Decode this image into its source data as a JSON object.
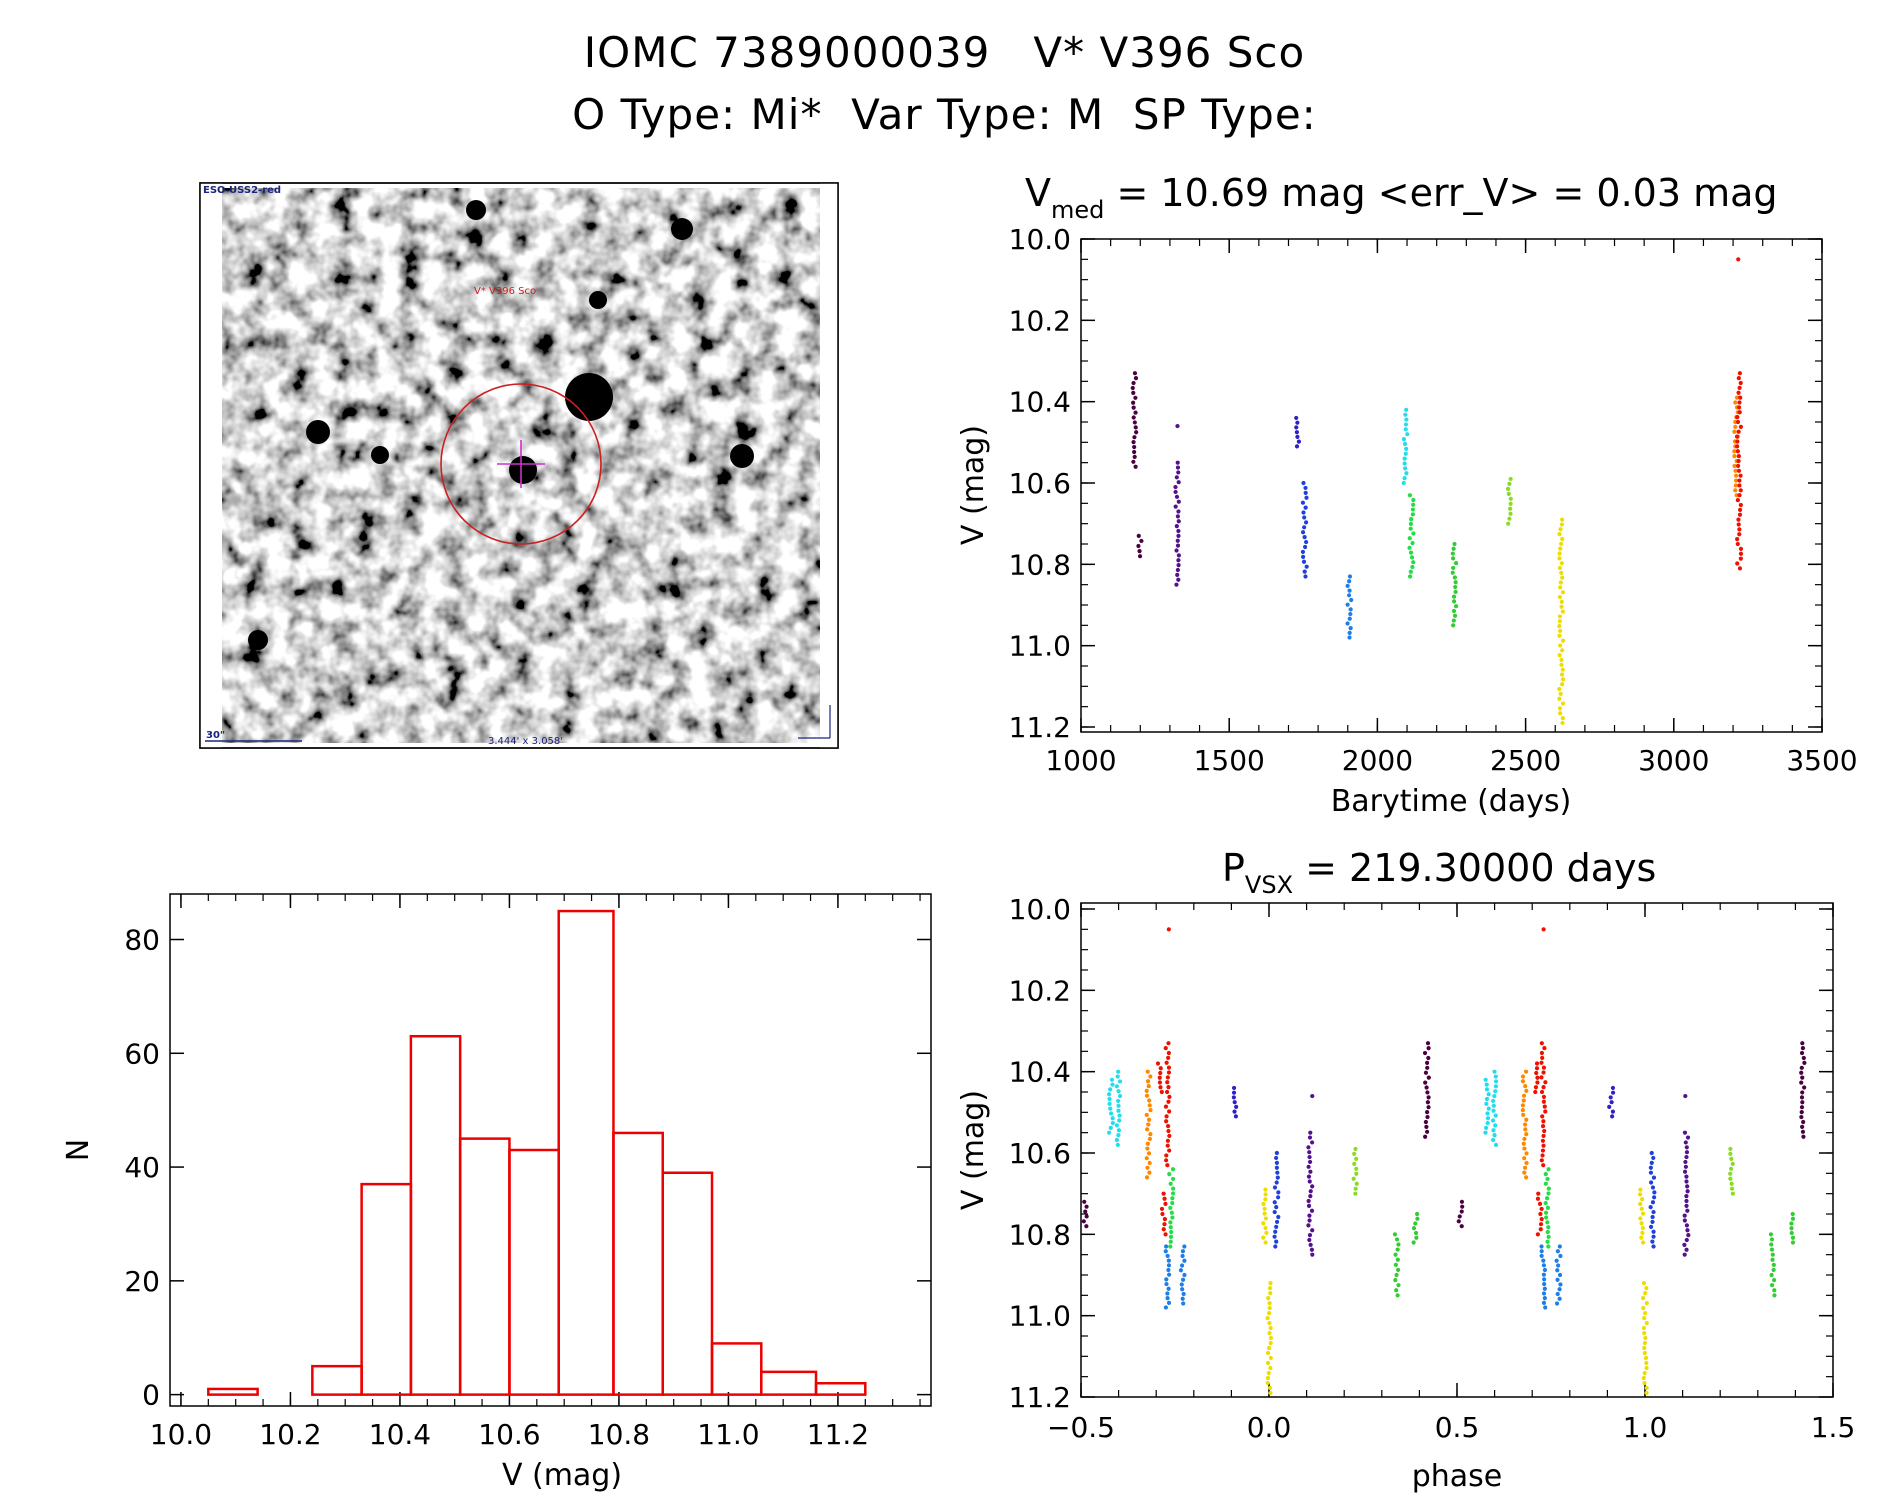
{
  "header": {
    "line1": "IOMC 7389000039   V* V396 Sco",
    "line2": "O Type: Mi*  Var Type: M  SP Type:"
  },
  "image_panel": {
    "survey_label": "ESO USS2-red",
    "object_label": "V* V396 Sco",
    "scale_label": "30\"",
    "size_label": "3.444' x 3.058'"
  },
  "chart_data": [
    {
      "type": "scatter",
      "name": "light-curve",
      "title_main": "V",
      "title_sub": "med",
      "title_rest": " = 10.69 mag <err_V> = 0.03 mag",
      "xlabel": "Barytime (days)",
      "ylabel": "V (mag)",
      "xlim": [
        1000,
        3500
      ],
      "ylim": [
        10.0,
        11.2
      ],
      "y_inverted": true,
      "xticks": [
        "1000",
        "1500",
        "2000",
        "2500",
        "3000",
        "3500"
      ],
      "yticks": [
        "10.0",
        "10.2",
        "10.4",
        "10.6",
        "10.8",
        "11.0",
        "11.2"
      ],
      "point_groups": [
        {
          "x": 1180,
          "ymin": 10.33,
          "ymax": 10.56,
          "color": "#4b0040"
        },
        {
          "x": 1200,
          "ymin": 10.73,
          "ymax": 10.78,
          "color": "#4b0040"
        },
        {
          "x": 1325,
          "ymin": 10.46,
          "ymax": 10.46,
          "color": "#55108c"
        },
        {
          "x": 1325,
          "ymin": 10.55,
          "ymax": 10.85,
          "color": "#55108c"
        },
        {
          "x": 1730,
          "ymin": 10.44,
          "ymax": 10.51,
          "color": "#3020c8"
        },
        {
          "x": 1755,
          "ymin": 10.6,
          "ymax": 10.83,
          "color": "#2040dd"
        },
        {
          "x": 1905,
          "ymin": 10.83,
          "ymax": 10.98,
          "color": "#1e7ee6"
        },
        {
          "x": 2095,
          "ymin": 10.42,
          "ymax": 10.6,
          "color": "#22ddee"
        },
        {
          "x": 2115,
          "ymin": 10.63,
          "ymax": 10.83,
          "color": "#22dd44"
        },
        {
          "x": 2260,
          "ymin": 10.75,
          "ymax": 10.95,
          "color": "#33cc33"
        },
        {
          "x": 2445,
          "ymin": 10.59,
          "ymax": 10.7,
          "color": "#88dd22"
        },
        {
          "x": 2620,
          "ymin": 10.69,
          "ymax": 11.19,
          "color": "#eedd00"
        },
        {
          "x": 3210,
          "ymin": 10.39,
          "ymax": 10.63,
          "color": "#ff8800"
        },
        {
          "x": 3220,
          "ymin": 10.33,
          "ymax": 10.81,
          "color": "#ee1100"
        },
        {
          "x": 3220,
          "ymin": 10.05,
          "ymax": 10.05,
          "color": "#ee1100"
        }
      ]
    },
    {
      "type": "bar",
      "name": "histogram",
      "xlabel": "V (mag)",
      "ylabel": "N",
      "xlim": [
        9.98,
        11.37
      ],
      "ylim": [
        -2,
        88
      ],
      "xticks": [
        "10.0",
        "10.2",
        "10.4",
        "10.6",
        "10.8",
        "11.0",
        "11.2"
      ],
      "yticks": [
        "0",
        "20",
        "40",
        "60",
        "80"
      ],
      "bin_edges": [
        10.05,
        10.14,
        10.24,
        10.33,
        10.42,
        10.51,
        10.6,
        10.69,
        10.79,
        10.88,
        10.97,
        11.06,
        11.16,
        11.25
      ],
      "values": [
        1,
        0,
        5,
        37,
        63,
        45,
        43,
        85,
        46,
        39,
        9,
        4,
        2
      ],
      "bar_color": "#ee0000"
    },
    {
      "type": "scatter",
      "name": "phase-curve",
      "title_main": "P",
      "title_sub": "VSX",
      "title_rest": " = 219.30000 days",
      "xlabel": "phase",
      "ylabel": "V (mag)",
      "xlim": [
        -0.5,
        1.5
      ],
      "ylim": [
        10.0,
        11.2
      ],
      "y_inverted": true,
      "xticks": [
        "−0.5",
        "0.0",
        "0.5",
        "1.0",
        "1.5"
      ],
      "yticks": [
        "10.0",
        "10.2",
        "10.4",
        "10.6",
        "10.8",
        "11.0",
        "11.2"
      ],
      "point_groups": [
        {
          "x": -0.49,
          "ymin": 10.72,
          "ymax": 10.78,
          "color": "#4b0040"
        },
        {
          "x": -0.42,
          "ymin": 10.42,
          "ymax": 10.55,
          "color": "#22ddee"
        },
        {
          "x": -0.4,
          "ymin": 10.4,
          "ymax": 10.58,
          "color": "#22ddee"
        },
        {
          "x": -0.32,
          "ymin": 10.4,
          "ymax": 10.66,
          "color": "#ff8800"
        },
        {
          "x": -0.29,
          "ymin": 10.38,
          "ymax": 10.45,
          "color": "#ee1100"
        },
        {
          "x": -0.28,
          "ymin": 10.7,
          "ymax": 10.8,
          "color": "#ee1100"
        },
        {
          "x": -0.27,
          "ymin": 10.33,
          "ymax": 10.63,
          "color": "#ee1100"
        },
        {
          "x": -0.27,
          "ymin": 10.05,
          "ymax": 10.05,
          "color": "#ee1100"
        },
        {
          "x": -0.26,
          "ymin": 10.64,
          "ymax": 10.83,
          "color": "#22dd44"
        },
        {
          "x": -0.27,
          "ymin": 10.83,
          "ymax": 10.98,
          "color": "#1e7ee6"
        },
        {
          "x": -0.23,
          "ymin": 10.83,
          "ymax": 10.97,
          "color": "#1e7ee6"
        },
        {
          "x": -0.09,
          "ymin": 10.44,
          "ymax": 10.51,
          "color": "#3020c8"
        },
        {
          "x": -0.01,
          "ymin": 10.69,
          "ymax": 10.82,
          "color": "#eedd00"
        },
        {
          "x": 0.0,
          "ymin": 10.92,
          "ymax": 11.19,
          "color": "#eedd00"
        },
        {
          "x": 0.02,
          "ymin": 10.6,
          "ymax": 10.83,
          "color": "#2040dd"
        },
        {
          "x": 0.11,
          "ymin": 10.46,
          "ymax": 10.46,
          "color": "#55108c"
        },
        {
          "x": 0.11,
          "ymin": 10.55,
          "ymax": 10.85,
          "color": "#55108c"
        },
        {
          "x": 0.23,
          "ymin": 10.59,
          "ymax": 10.7,
          "color": "#88dd22"
        },
        {
          "x": 0.34,
          "ymin": 10.8,
          "ymax": 10.95,
          "color": "#33cc33"
        },
        {
          "x": 0.39,
          "ymin": 10.75,
          "ymax": 10.82,
          "color": "#33cc33"
        },
        {
          "x": 0.42,
          "ymin": 10.33,
          "ymax": 10.56,
          "color": "#4b0040"
        },
        {
          "x": 0.51,
          "ymin": 10.72,
          "ymax": 10.78,
          "color": "#4b0040"
        },
        {
          "x": 0.58,
          "ymin": 10.42,
          "ymax": 10.55,
          "color": "#22ddee"
        },
        {
          "x": 0.6,
          "ymin": 10.4,
          "ymax": 10.58,
          "color": "#22ddee"
        },
        {
          "x": 0.68,
          "ymin": 10.4,
          "ymax": 10.66,
          "color": "#ff8800"
        },
        {
          "x": 0.71,
          "ymin": 10.38,
          "ymax": 10.45,
          "color": "#ee1100"
        },
        {
          "x": 0.72,
          "ymin": 10.7,
          "ymax": 10.8,
          "color": "#ee1100"
        },
        {
          "x": 0.73,
          "ymin": 10.33,
          "ymax": 10.63,
          "color": "#ee1100"
        },
        {
          "x": 0.73,
          "ymin": 10.05,
          "ymax": 10.05,
          "color": "#ee1100"
        },
        {
          "x": 0.74,
          "ymin": 10.64,
          "ymax": 10.83,
          "color": "#22dd44"
        },
        {
          "x": 0.73,
          "ymin": 10.83,
          "ymax": 10.98,
          "color": "#1e7ee6"
        },
        {
          "x": 0.77,
          "ymin": 10.83,
          "ymax": 10.97,
          "color": "#1e7ee6"
        },
        {
          "x": 0.91,
          "ymin": 10.44,
          "ymax": 10.51,
          "color": "#3020c8"
        },
        {
          "x": 0.99,
          "ymin": 10.69,
          "ymax": 10.82,
          "color": "#eedd00"
        },
        {
          "x": 1.0,
          "ymin": 10.92,
          "ymax": 11.19,
          "color": "#eedd00"
        },
        {
          "x": 1.02,
          "ymin": 10.6,
          "ymax": 10.83,
          "color": "#2040dd"
        },
        {
          "x": 1.11,
          "ymin": 10.46,
          "ymax": 10.46,
          "color": "#55108c"
        },
        {
          "x": 1.11,
          "ymin": 10.55,
          "ymax": 10.85,
          "color": "#55108c"
        },
        {
          "x": 1.23,
          "ymin": 10.59,
          "ymax": 10.7,
          "color": "#88dd22"
        },
        {
          "x": 1.34,
          "ymin": 10.8,
          "ymax": 10.95,
          "color": "#33cc33"
        },
        {
          "x": 1.39,
          "ymin": 10.75,
          "ymax": 10.82,
          "color": "#33cc33"
        },
        {
          "x": 1.42,
          "ymin": 10.33,
          "ymax": 10.56,
          "color": "#4b0040"
        }
      ]
    }
  ]
}
